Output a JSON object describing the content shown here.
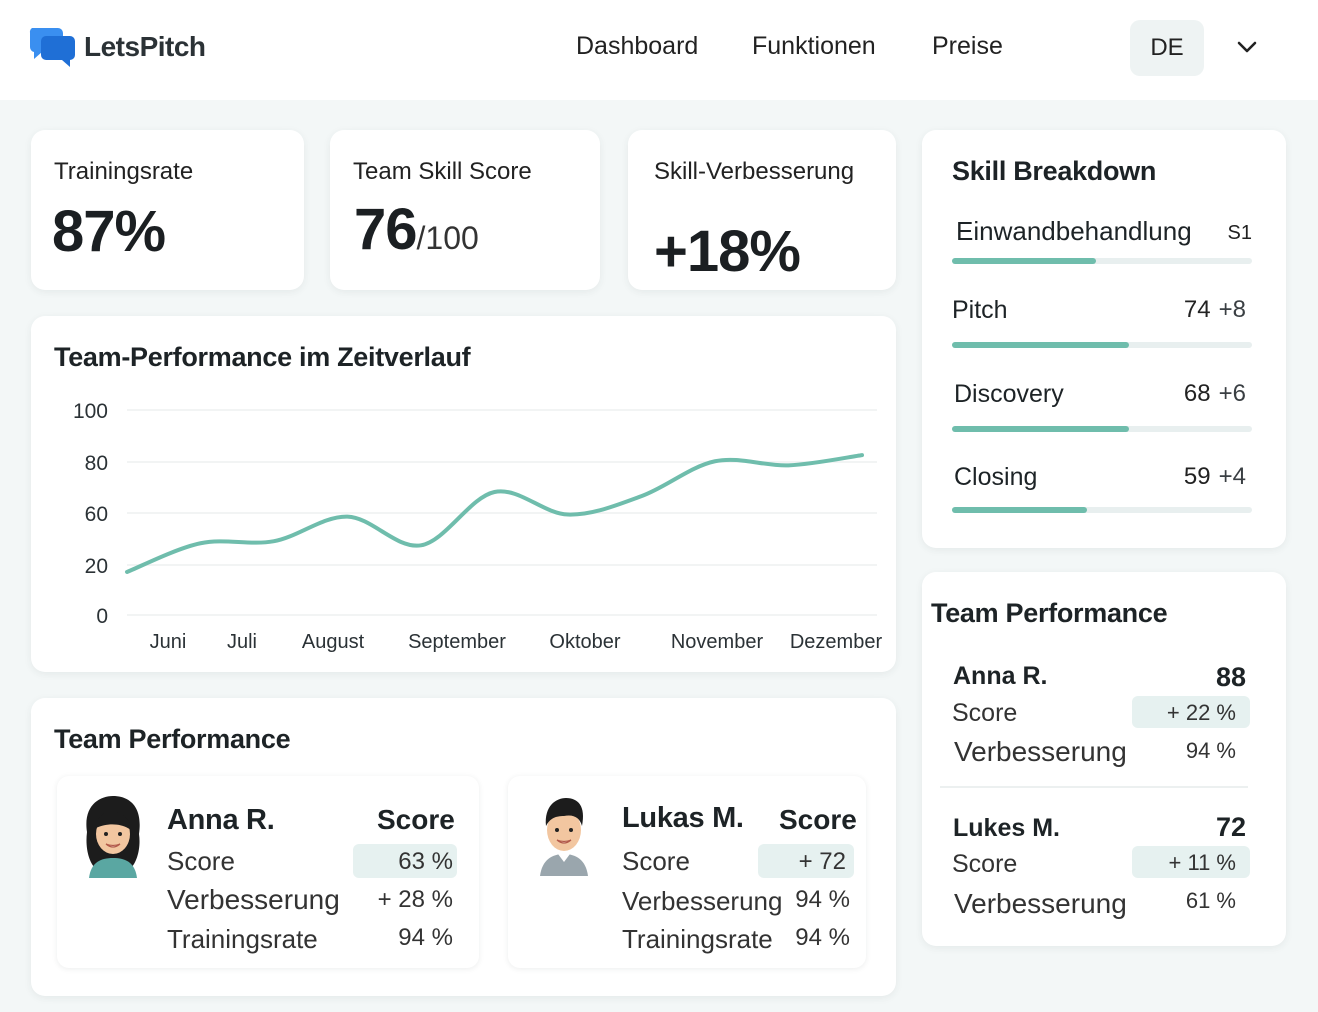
{
  "header": {
    "logo_text": "LetsPitch",
    "nav": [
      "Dashboard",
      "Funktionen",
      "Preise"
    ],
    "language": "DE"
  },
  "kpis": [
    {
      "label": "Trainingsrate",
      "value": "87%"
    },
    {
      "label": "Team Skill Score",
      "value": "76",
      "suffix": "/100"
    },
    {
      "label": "Skill-Verbesserung",
      "value": "+18%"
    }
  ],
  "performance_chart": {
    "title": "Team-Performance im Zeitverlauf"
  },
  "chart_data": {
    "type": "line",
    "title": "Team-Performance im Zeitverlauf",
    "x_labels": [
      "Juni",
      "Juli",
      "August",
      "September",
      "Oktober",
      "November",
      "Dezember"
    ],
    "y_ticks": [
      "100",
      "80",
      "60",
      "20",
      "0"
    ],
    "series": [
      {
        "values": [
          21,
          35,
          36,
          48,
          34,
          60,
          49,
          58,
          75,
          73,
          78
        ]
      }
    ],
    "line_color": "#6fbdac",
    "grid": true
  },
  "skill_breakdown": {
    "title": "Skill Breakdown",
    "items": [
      {
        "name": "Einwandbehandlung",
        "score": "S1",
        "delta": "",
        "fill": 0.48
      },
      {
        "name": "Pitch",
        "score": "74",
        "delta": "+8",
        "fill": 0.59
      },
      {
        "name": "Discovery",
        "score": "68",
        "delta": "+6",
        "fill": 0.59
      },
      {
        "name": "Closing",
        "score": "59",
        "delta": "+4",
        "fill": 0.45
      }
    ]
  },
  "team_performance_main": {
    "title": "Team Performance",
    "members": [
      {
        "name": "Anna R.",
        "score_header": "Score",
        "score_label": "Score",
        "score_value": "63 %",
        "improvement_label": "Verbesserung",
        "improvement_value": "+ 28 %",
        "training_label": "Trainingsrate",
        "training_value": "94 %"
      },
      {
        "name": "Lukas M.",
        "score_header": "Score",
        "score_label": "Score",
        "score_value": "+ 72",
        "improvement_label": "Verbesserung",
        "improvement_value": "94 %",
        "training_label": "Trainingsrate",
        "training_value": "94 %"
      }
    ]
  },
  "team_performance_side": {
    "title": "Team Performance",
    "members": [
      {
        "name": "Anna R.",
        "score": "88",
        "score_label": "Score",
        "score_value": "+ 22 %",
        "improvement_label": "Verbesserung",
        "improvement_value": "94 %"
      },
      {
        "name": "Lukes M.",
        "score": "72",
        "score_label": "Score",
        "score_value": "+ 11 %",
        "improvement_label": "Verbesserung",
        "improvement_value": "61 %"
      }
    ]
  }
}
